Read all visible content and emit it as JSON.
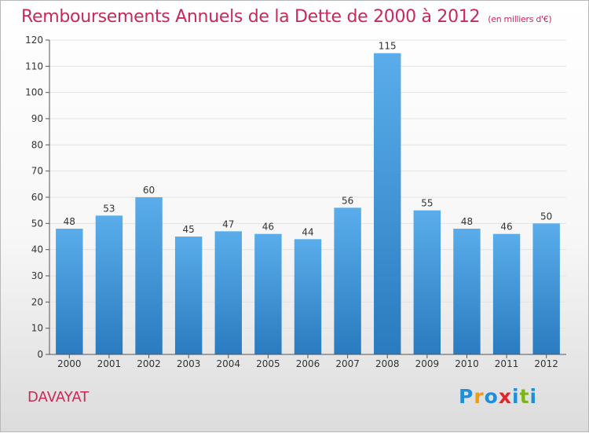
{
  "title": "Remboursements Annuels de la Dette de 2000 à 2012",
  "subtitle": "(en milliers d'€)",
  "commune": "DAVAYAT",
  "logo": {
    "text": "Proxiti",
    "letters": [
      {
        "ch": "P",
        "color": "#1e8fd8"
      },
      {
        "ch": "r",
        "color": "#f29a16"
      },
      {
        "ch": "o",
        "color": "#1e8fd8"
      },
      {
        "ch": "x",
        "color": "#e0262a"
      },
      {
        "ch": "i",
        "color": "#1e8fd8"
      },
      {
        "ch": "t",
        "color": "#7cb51b"
      },
      {
        "ch": "i",
        "color": "#1e8fd8"
      }
    ]
  },
  "colors": {
    "title": "#c8285a",
    "bar_top": "#5aadea",
    "bar_bottom": "#2a7bbf",
    "grid": "#e3e3e3",
    "axis": "#555555"
  },
  "chart_data": {
    "type": "bar",
    "categories": [
      "2000",
      "2001",
      "2002",
      "2003",
      "2004",
      "2005",
      "2006",
      "2007",
      "2008",
      "2009",
      "2010",
      "2011",
      "2012"
    ],
    "values": [
      48,
      53,
      60,
      45,
      47,
      46,
      44,
      56,
      115,
      55,
      48,
      46,
      50
    ],
    "ylim": [
      0,
      120
    ],
    "yticks": [
      0,
      10,
      20,
      30,
      40,
      50,
      60,
      70,
      80,
      90,
      100,
      110,
      120
    ],
    "grid": true,
    "title": "Remboursements Annuels de la Dette de 2000 à 2012",
    "subtitle": "(en milliers d'€)"
  }
}
